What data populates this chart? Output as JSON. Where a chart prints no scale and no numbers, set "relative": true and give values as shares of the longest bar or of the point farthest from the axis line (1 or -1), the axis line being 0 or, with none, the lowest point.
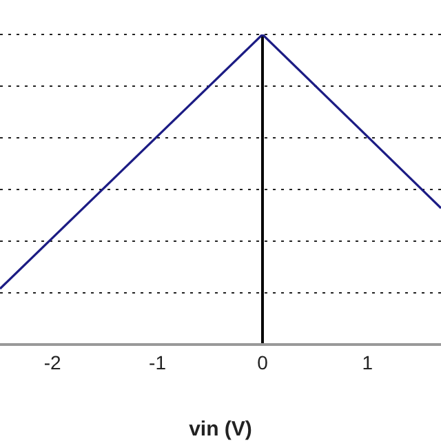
{
  "chart_data": {
    "type": "line",
    "xlabel": "vin (V)",
    "x": [
      -2.5,
      0,
      1.7
    ],
    "series": [
      {
        "color": "#1c1c84",
        "values": [
          0.18,
          1,
          0.44
        ]
      }
    ],
    "relative": true,
    "xlim": [
      -2.5,
      1.7
    ],
    "xticks": [
      -2,
      -1,
      0,
      1
    ],
    "grid": "y",
    "marker": "none",
    "line_style": "solid",
    "ref_lines": [
      {
        "axis": "x",
        "value": 0,
        "color": "#000000"
      }
    ]
  }
}
